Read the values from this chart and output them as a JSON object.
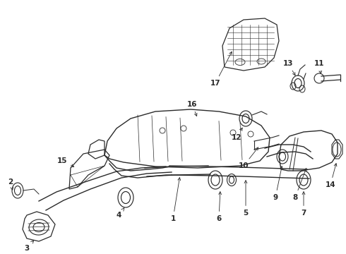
{
  "bg_color": "#ffffff",
  "lc": "#2a2a2a",
  "figsize": [
    4.9,
    3.6
  ],
  "dpi": 100,
  "xlim": [
    0,
    490
  ],
  "ylim": [
    0,
    360
  ],
  "label_fontsize": 7.5
}
